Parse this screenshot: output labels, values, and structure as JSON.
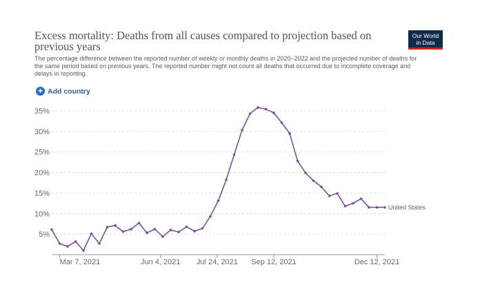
{
  "header": {
    "title": "Excess mortality: Deaths from all causes compared to projection based on previous years",
    "subtitle": "The percentage difference between the reported number of weekly or monthly deaths in 2020–2022 and the projected number of deaths for the same period based on previous years. The reported number might not count all deaths that occurred due to incomplete coverage and delays in reporting.",
    "logo_line1": "Our World",
    "logo_line2": "in Data"
  },
  "controls": {
    "add_country": "Add country",
    "add_icon": "plus-circle-icon"
  },
  "colors": {
    "series": "#7a5199",
    "grid": "#dddddd",
    "logo_bg": "#0f2a4a",
    "logo_accent": "#ce261e",
    "add_button": "#2c6fb7"
  },
  "chart_data": {
    "type": "line",
    "x_type": "date",
    "ylim": [
      0,
      36
    ],
    "yticks": [
      5,
      10,
      15,
      20,
      25,
      30,
      35
    ],
    "ytick_labels": [
      "5%",
      "10%",
      "15%",
      "20%",
      "25%",
      "30%",
      "35%"
    ],
    "xticks": [
      "2021-03-07",
      "2021-06-04",
      "2021-07-24",
      "2021-09-12",
      "2021-12-12"
    ],
    "xtick_labels": [
      "Mar 7, 2021",
      "Jun 4, 2021",
      "Jul 24, 2021",
      "Sep 12, 2021",
      "Dec 12, 2021"
    ],
    "grid": "horizontal dashed",
    "x_range": [
      "2021-02-28",
      "2021-12-19"
    ],
    "series": [
      {
        "name": "United States",
        "x": [
          "2021-02-28",
          "2021-03-07",
          "2021-03-14",
          "2021-03-21",
          "2021-03-28",
          "2021-04-04",
          "2021-04-11",
          "2021-04-18",
          "2021-04-25",
          "2021-05-02",
          "2021-05-09",
          "2021-05-16",
          "2021-05-23",
          "2021-05-30",
          "2021-06-06",
          "2021-06-13",
          "2021-06-20",
          "2021-06-27",
          "2021-07-04",
          "2021-07-11",
          "2021-07-18",
          "2021-07-25",
          "2021-08-01",
          "2021-08-08",
          "2021-08-15",
          "2021-08-22",
          "2021-08-29",
          "2021-09-05",
          "2021-09-12",
          "2021-09-19",
          "2021-09-26",
          "2021-10-03",
          "2021-10-10",
          "2021-10-17",
          "2021-10-24",
          "2021-10-31",
          "2021-11-07",
          "2021-11-14",
          "2021-11-21",
          "2021-11-28",
          "2021-12-05",
          "2021-12-12",
          "2021-12-19"
        ],
        "y": [
          6.1,
          2.7,
          2.0,
          3.2,
          1.0,
          5.1,
          2.7,
          6.7,
          7.1,
          5.6,
          6.2,
          7.7,
          5.3,
          6.2,
          4.4,
          6.0,
          5.5,
          6.8,
          5.7,
          6.4,
          9.3,
          13.1,
          18.2,
          24.3,
          30.3,
          34.3,
          35.8,
          35.4,
          34.5,
          32.1,
          29.5,
          22.8,
          19.9,
          18.0,
          16.5,
          14.3,
          14.9,
          11.8,
          12.5,
          13.6,
          11.5,
          11.5,
          11.5
        ]
      }
    ]
  }
}
